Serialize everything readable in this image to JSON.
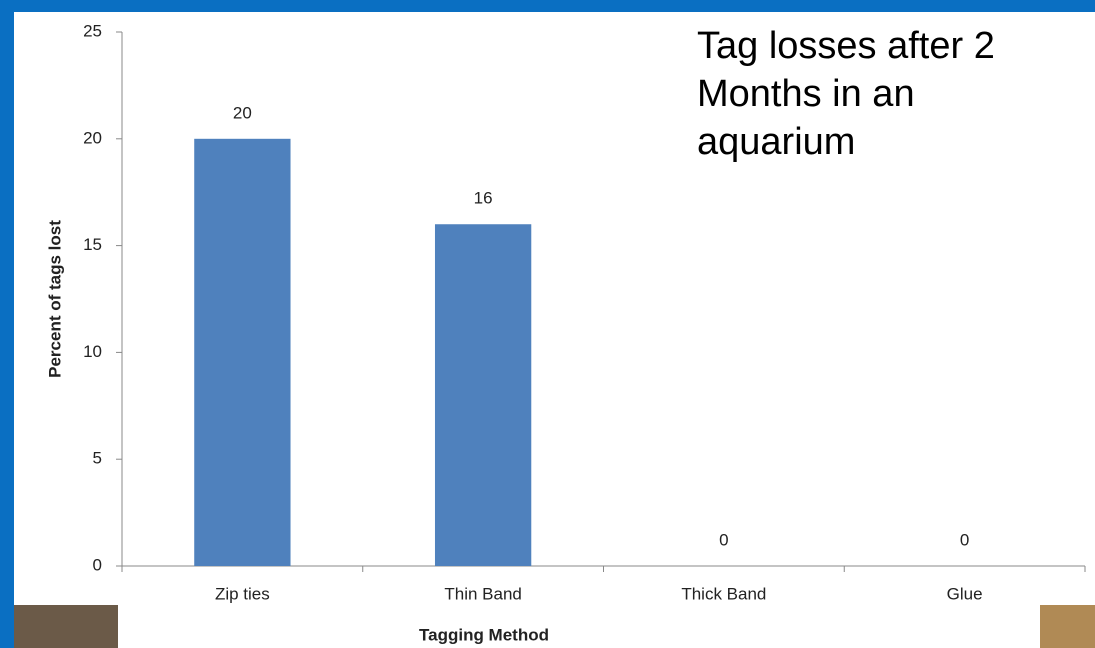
{
  "chart_data": {
    "type": "bar",
    "title": "Tag losses after 2 Months in an aquarium",
    "x_label": "Tagging Method",
    "y_label": "Percent of tags lost",
    "categories": [
      "Zip ties",
      "Thin Band",
      "Thick Band",
      "Glue"
    ],
    "values": [
      20,
      16,
      0,
      0
    ],
    "color": "#4f81bd",
    "ylim": [
      0,
      25
    ],
    "yticks": [
      0,
      5,
      10,
      15,
      20,
      25
    ],
    "grid": false
  }
}
